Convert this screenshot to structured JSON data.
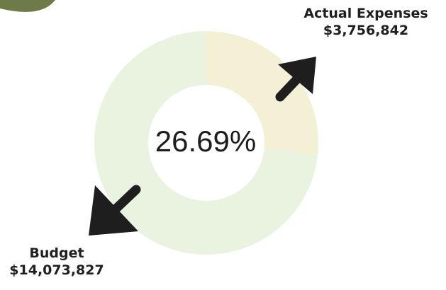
{
  "chart_data": {
    "type": "pie",
    "center_label": "26.69%",
    "slices": [
      {
        "label": "Actual Expenses",
        "display_value": "$3,756,842",
        "value": 3756842,
        "color": "#f3f0d6"
      },
      {
        "label": "Budget",
        "display_value": "$14,073,827",
        "value": 14073827,
        "color": "#e9f3df"
      }
    ]
  },
  "colors": {
    "corner_accent": "#6e7a48",
    "arrow": "#1e1e1e",
    "text": "#1f1f1f"
  },
  "icons": [
    "arrow-up-right-icon",
    "arrow-down-left-icon"
  ]
}
